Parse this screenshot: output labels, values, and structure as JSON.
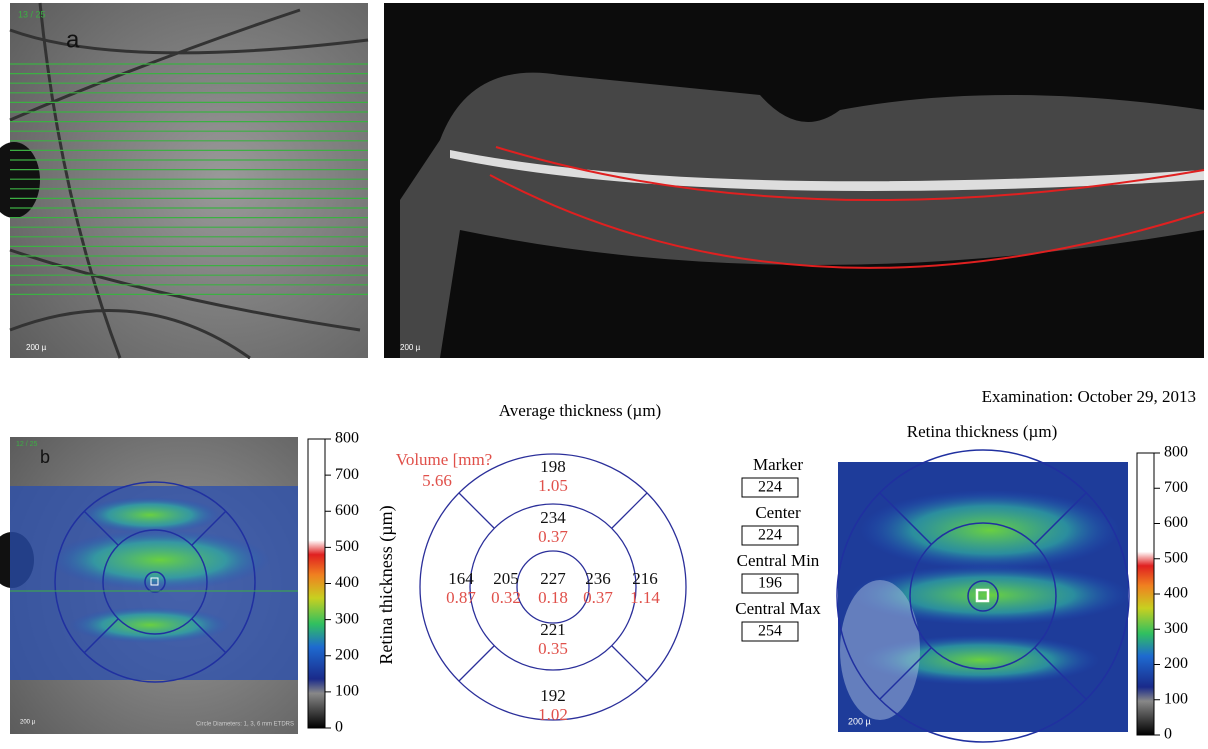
{
  "panel_a": {
    "slice": "13 / 25",
    "letter": "a",
    "fundus_scale": "200 µ",
    "oct_scale": "200 µ"
  },
  "panel_b": {
    "slice": "12 / 25",
    "letter": "b",
    "footnote": "Circle Diameters: 1, 3, 6 mm ETDRS",
    "scale": "200 µ",
    "colorbar_label": "Retina thickness (µm)",
    "colorbar_ticks": [
      0,
      100,
      200,
      300,
      400,
      500,
      600,
      700,
      800
    ],
    "grid_title": "Average thickness (µm)",
    "volume_label": "Volume [mm?",
    "volume": "5.66",
    "sectors": [
      {
        "thickness": "198",
        "volume": "1.05"
      },
      {
        "thickness": "234",
        "volume": "0.37"
      },
      {
        "thickness": "164",
        "volume": "0.87"
      },
      {
        "thickness": "205",
        "volume": "0.32"
      },
      {
        "thickness": "227",
        "volume": "0.18"
      },
      {
        "thickness": "236",
        "volume": "0.37"
      },
      {
        "thickness": "216",
        "volume": "1.14"
      },
      {
        "thickness": "221",
        "volume": "0.35"
      },
      {
        "thickness": "192",
        "volume": "1.02"
      }
    ],
    "stats": [
      {
        "label": "Marker",
        "value": "224"
      },
      {
        "label": "Center",
        "value": "224"
      },
      {
        "label": "Central Min",
        "value": "196"
      },
      {
        "label": "Central Max",
        "value": "254"
      }
    ],
    "examination": "Examination: October 29, 2013",
    "map_title": "Retina thickness (µm)",
    "map_colorbar_ticks": [
      0,
      100,
      200,
      300,
      400,
      500,
      600,
      700,
      800
    ]
  }
}
